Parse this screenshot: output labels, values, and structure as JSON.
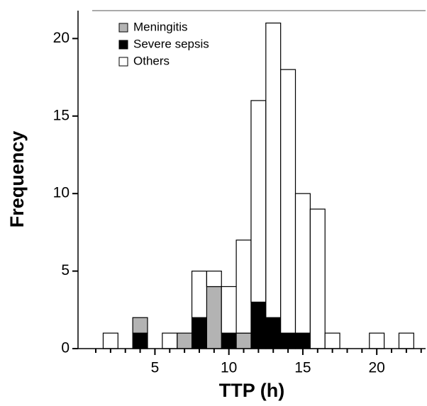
{
  "chart_data": {
    "type": "histogram",
    "x_label": "TTP (h)",
    "y_label": "Frequency",
    "bins": [
      1.5,
      2.5,
      3.5,
      4.5,
      5.5,
      6.5,
      7.5,
      8.5,
      9.5,
      10.5,
      11.5,
      12.5,
      13.5,
      14.5,
      15.5,
      16.5,
      17.5,
      18.5,
      19.5,
      20.5,
      21.5,
      22.5
    ],
    "stacked": true,
    "series": [
      {
        "name": "Severe sepsis",
        "color": "#000000",
        "values": [
          0,
          0,
          1,
          0,
          0,
          0,
          2,
          0,
          1,
          0,
          3,
          2,
          1,
          1,
          0,
          0,
          0,
          0,
          0,
          0,
          0
        ]
      },
      {
        "name": "Meningitis",
        "color": "#b3b3b3",
        "values": [
          0,
          0,
          1,
          0,
          0,
          1,
          0,
          4,
          0,
          1,
          0,
          0,
          0,
          0,
          0,
          0,
          0,
          0,
          0,
          0,
          0
        ]
      },
      {
        "name": "Others",
        "color": "#ffffff",
        "values": [
          1,
          0,
          0,
          0,
          1,
          0,
          3,
          1,
          3,
          6,
          13,
          19,
          17,
          9,
          9,
          1,
          0,
          0,
          1,
          0,
          1
        ]
      }
    ],
    "legend_order": [
      1,
      0,
      2
    ],
    "xlim": [
      -0.2,
      23.3
    ],
    "xticks": [
      5,
      10,
      15,
      20
    ],
    "xminorticks": [
      1,
      2,
      3,
      4,
      6,
      7,
      8,
      9,
      11,
      12,
      13,
      14,
      16,
      17,
      18,
      19,
      21,
      22,
      23
    ],
    "ylim": [
      0,
      21.8
    ],
    "yticks": [
      0,
      5,
      10,
      15,
      20
    ],
    "legend_position": "upper left"
  }
}
